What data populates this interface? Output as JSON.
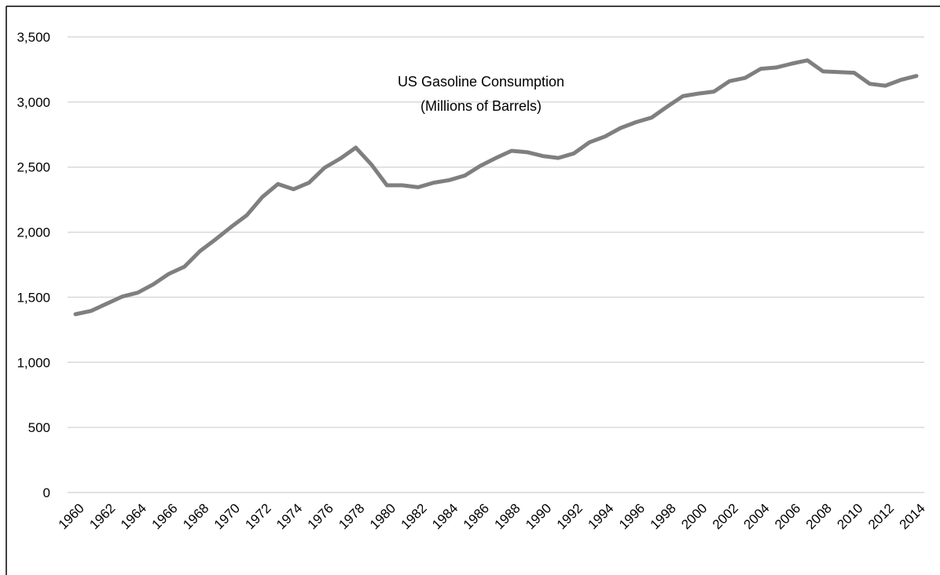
{
  "chart_data": {
    "type": "line",
    "title": "US Gasoline Consumption",
    "subtitle": "(Millions of Barrels)",
    "xlabel": "",
    "ylabel": "",
    "ylim": [
      0,
      3500
    ],
    "yticks": [
      0,
      500,
      1000,
      1500,
      2000,
      2500,
      3000,
      3500
    ],
    "ytick_labels": [
      "0",
      "500",
      "1,000",
      "1,500",
      "2,000",
      "2,500",
      "3,000",
      "3,500"
    ],
    "grid": "horizontal",
    "legend": "none",
    "line_color": "#7f7f7f",
    "grid_color": "#d9d9d9",
    "x": [
      1960,
      1961,
      1962,
      1963,
      1964,
      1965,
      1966,
      1967,
      1968,
      1969,
      1970,
      1971,
      1972,
      1973,
      1974,
      1975,
      1976,
      1977,
      1978,
      1979,
      1980,
      1981,
      1982,
      1983,
      1984,
      1985,
      1986,
      1987,
      1988,
      1989,
      1990,
      1991,
      1992,
      1993,
      1994,
      1995,
      1996,
      1997,
      1998,
      1999,
      2000,
      2001,
      2002,
      2003,
      2004,
      2005,
      2006,
      2007,
      2008,
      2009,
      2010,
      2011,
      2012,
      2013,
      2014
    ],
    "xtick_labels": [
      "1960",
      "1962",
      "1964",
      "1966",
      "1968",
      "1970",
      "1972",
      "1974",
      "1976",
      "1978",
      "1980",
      "1982",
      "1984",
      "1986",
      "1988",
      "1990",
      "1992",
      "1994",
      "1996",
      "1998",
      "2000",
      "2002",
      "2004",
      "2006",
      "2008",
      "2010",
      "2012",
      "2014"
    ],
    "series": [
      {
        "values": [
          1370,
          1395,
          1450,
          1505,
          1535,
          1600,
          1680,
          1735,
          1855,
          1945,
          2040,
          2130,
          2270,
          2370,
          2330,
          2380,
          2495,
          2565,
          2650,
          2520,
          2360,
          2360,
          2345,
          2380,
          2400,
          2435,
          2510,
          2570,
          2625,
          2615,
          2585,
          2570,
          2605,
          2690,
          2735,
          2800,
          2845,
          2880,
          2965,
          3045,
          3065,
          3080,
          3160,
          3185,
          3255,
          3265,
          3295,
          3320,
          3235,
          3230,
          3225,
          3140,
          3125,
          3170,
          3200
        ]
      }
    ]
  }
}
